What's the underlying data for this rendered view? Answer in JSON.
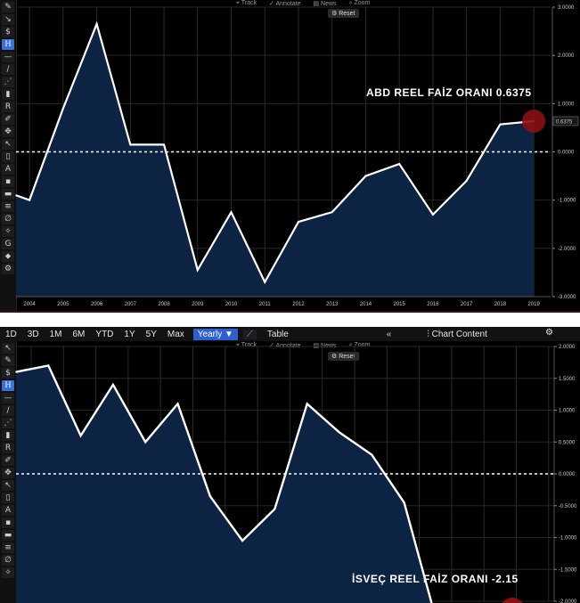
{
  "panel1": {
    "mini_tools": [
      "Track",
      "Annotate",
      "News",
      "Zoom"
    ],
    "reset_label": "Reset",
    "annotation": "ABD REEL FAİZ ORANI  0.6375",
    "last_value_tag": "0.6375",
    "left_tools": [
      "✎",
      "↘",
      "$",
      "ℍ",
      "—",
      "/",
      "⋰",
      "▮",
      "R",
      "✐",
      "✥",
      "↖",
      "▯",
      "A",
      "▪",
      "▬",
      "≡",
      "∅",
      "✧",
      "G",
      "⬥",
      "⚙"
    ]
  },
  "panel2": {
    "ranges": [
      "1D",
      "3D",
      "1M",
      "6M",
      "YTD",
      "1Y",
      "5Y",
      "Max"
    ],
    "selected_range": "Yearly ▼",
    "chart_icon": "📈",
    "table_label": "Table",
    "double_arrow": "«",
    "chart_content": "Chart Content",
    "settings_glyph": "⚙",
    "mini_tools": [
      "Track",
      "Annotate",
      "News",
      "Zoom"
    ],
    "reset_label": "Reset",
    "annotation": "İSVEÇ REEL FAİZ ORANI  -2.15",
    "left_tools": [
      "↖",
      "✎",
      "$",
      "ℍ",
      "—",
      "/",
      "⋰",
      "▮",
      "R",
      "✐",
      "✥",
      "↖",
      "▯",
      "A",
      "▪",
      "▬",
      "≡",
      "∅",
      "✧"
    ]
  },
  "chart_data": [
    {
      "type": "area",
      "title": "",
      "series_label": "ABD REEL FAİZ ORANI",
      "x_ticks": [
        "2004",
        "2005",
        "2006",
        "2007",
        "2008",
        "2009",
        "2010",
        "2011",
        "2012",
        "2013",
        "2014",
        "2015",
        "2016",
        "2017",
        "2018",
        "2019"
      ],
      "y_ticks": [
        "3.0000",
        "2.0000",
        "1.0000",
        "0.0000",
        "-1.0000",
        "-2.0000",
        "-3.0000"
      ],
      "ylim": [
        -3,
        3
      ],
      "x": [
        2003.6,
        2004,
        2005,
        2006,
        2007,
        2008,
        2009,
        2010,
        2011,
        2012,
        2013,
        2014,
        2015,
        2016,
        2017,
        2018,
        2019
      ],
      "values": [
        -0.9,
        -1.0,
        0.9,
        2.65,
        0.15,
        0.15,
        -2.45,
        -1.25,
        -2.7,
        -1.45,
        -1.25,
        -0.5,
        -0.25,
        -1.3,
        -0.6,
        0.57,
        0.6375
      ],
      "last_value": 0.6375,
      "zero_line": true,
      "grid": true
    },
    {
      "type": "area",
      "title": "",
      "series_label": "İSVEÇ REEL FAİZ ORANI",
      "y_ticks": [
        "2.0000",
        "1.5000",
        "1.0000",
        "0.5000",
        "0.0000",
        "-0.5000",
        "-1.0000",
        "-1.5000",
        "-2.0000"
      ],
      "ylim": [
        -2.0,
        2.0
      ],
      "x": [
        0,
        1,
        2,
        3,
        4,
        5,
        6,
        7,
        8,
        9,
        10,
        11,
        12
      ],
      "values": [
        1.6,
        1.7,
        0.6,
        1.4,
        0.5,
        1.1,
        -0.35,
        -1.05,
        -0.55,
        1.1,
        0.65,
        0.3,
        -0.45
      ],
      "tail_value": -2.15,
      "zero_line": true,
      "grid": true
    }
  ]
}
